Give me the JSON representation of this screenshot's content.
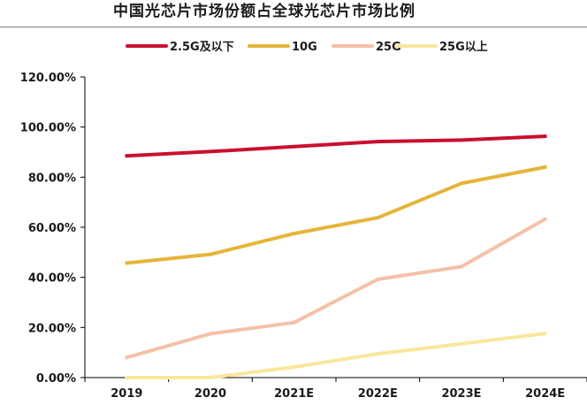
{
  "chart_data": {
    "type": "line",
    "title": "中国光芯片市场份额占全球光芯片市场比例",
    "xlabel": "",
    "ylabel": "",
    "categories": [
      "2019",
      "2020",
      "2021E",
      "2022E",
      "2023E",
      "2024E"
    ],
    "y_ticks": [
      "0.00%",
      "20.00%",
      "40.00%",
      "60.00%",
      "80.00%",
      "100.00%",
      "120.00%"
    ],
    "ylim": [
      0,
      120
    ],
    "grid": false,
    "legend_position": "top",
    "series": [
      {
        "name": "2.5G及以下",
        "color": "#c8102e",
        "values": [
          88.5,
          90.2,
          92.2,
          94.2,
          94.8,
          96.3
        ]
      },
      {
        "name": "10G",
        "color": "#e5b53a",
        "values": [
          45.7,
          49.2,
          57.5,
          63.8,
          77.5,
          84.0
        ]
      },
      {
        "name": "25G",
        "color": "#f4c1a8",
        "values": [
          8.0,
          17.5,
          22.0,
          39.2,
          44.3,
          63.3
        ]
      },
      {
        "name": "25G以上",
        "color": "#fbe79c",
        "values": [
          0.0,
          0.0,
          4.2,
          9.5,
          13.5,
          17.6
        ]
      }
    ]
  }
}
